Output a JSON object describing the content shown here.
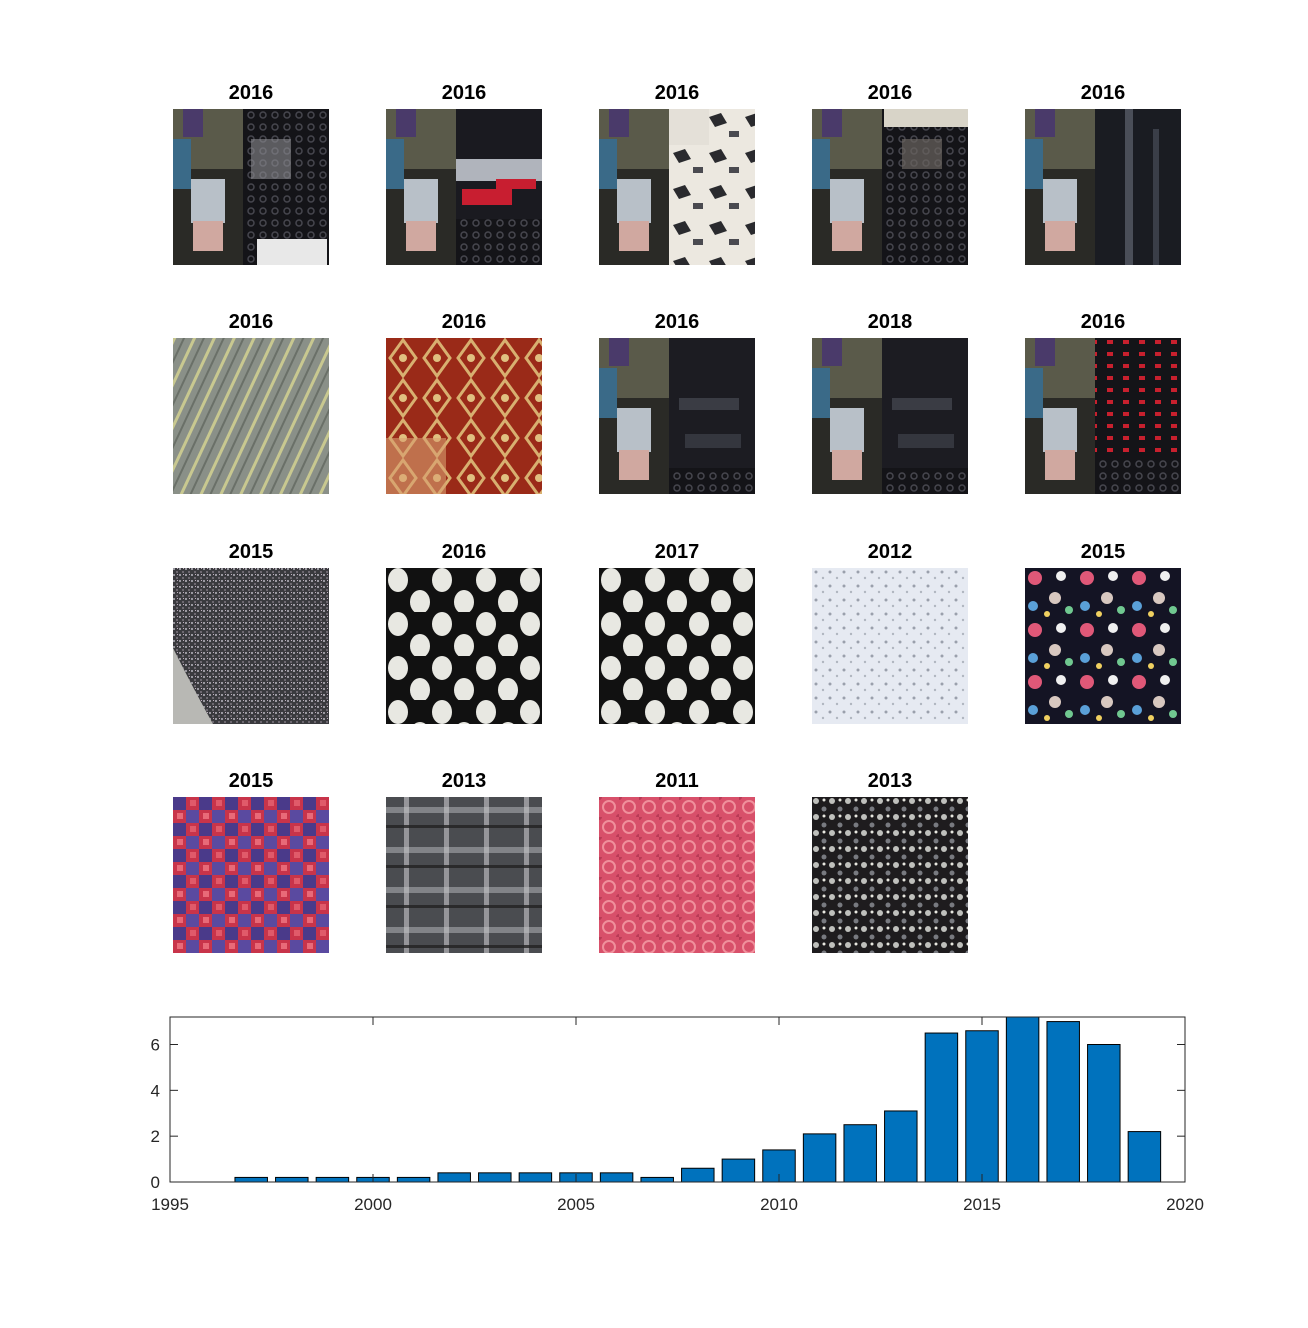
{
  "tiles": [
    {
      "label": "2016",
      "pattern": "dark-runway-lace"
    },
    {
      "label": "2016",
      "pattern": "dark-runway-red-stripes"
    },
    {
      "label": "2016",
      "pattern": "cream-black-print"
    },
    {
      "label": "2016",
      "pattern": "black-lace-skirt"
    },
    {
      "label": "2016",
      "pattern": "black-satin-gown"
    },
    {
      "label": "2016",
      "pattern": "gray-gold-metallic"
    },
    {
      "label": "2016",
      "pattern": "red-gold-brocade"
    },
    {
      "label": "2016",
      "pattern": "black-ruffle-skirt"
    },
    {
      "label": "2018",
      "pattern": "black-ruffle-skirt"
    },
    {
      "label": "2016",
      "pattern": "black-red-tulle"
    },
    {
      "label": "2015",
      "pattern": "gray-tweed"
    },
    {
      "label": "2016",
      "pattern": "black-white-polka-dot"
    },
    {
      "label": "2017",
      "pattern": "black-white-polka-dot"
    },
    {
      "label": "2012",
      "pattern": "white-eyelet"
    },
    {
      "label": "2015",
      "pattern": "multicolor-confetti"
    },
    {
      "label": "2015",
      "pattern": "red-blue-houndstooth"
    },
    {
      "label": "2013",
      "pattern": "gray-plaid"
    },
    {
      "label": "2011",
      "pattern": "pink-geometric"
    },
    {
      "label": "2013",
      "pattern": "black-white-sequin"
    }
  ],
  "chart_data": {
    "type": "bar",
    "title": "",
    "xlabel": "",
    "ylabel": "",
    "x": [
      1997,
      1998,
      1999,
      2000,
      2001,
      2002,
      2003,
      2004,
      2005,
      2006,
      2007,
      2008,
      2009,
      2010,
      2011,
      2012,
      2013,
      2014,
      2015,
      2016,
      2017,
      2018,
      2019
    ],
    "values": [
      0.2,
      0.2,
      0.2,
      0.2,
      0.2,
      0.4,
      0.4,
      0.4,
      0.4,
      0.4,
      0.2,
      0.6,
      1.0,
      1.4,
      2.1,
      2.5,
      3.1,
      6.5,
      6.6,
      7.3,
      7.0,
      6.0,
      2.2
    ],
    "xlim": [
      1995,
      2020
    ],
    "ylim": [
      0,
      7.2
    ],
    "xticks": [
      "1995",
      "2000",
      "2005",
      "2010",
      "2015",
      "2020"
    ],
    "yticks": [
      "0",
      "2",
      "4",
      "6"
    ],
    "bar_color": "#0072bd",
    "grid": false,
    "legend": "none"
  }
}
